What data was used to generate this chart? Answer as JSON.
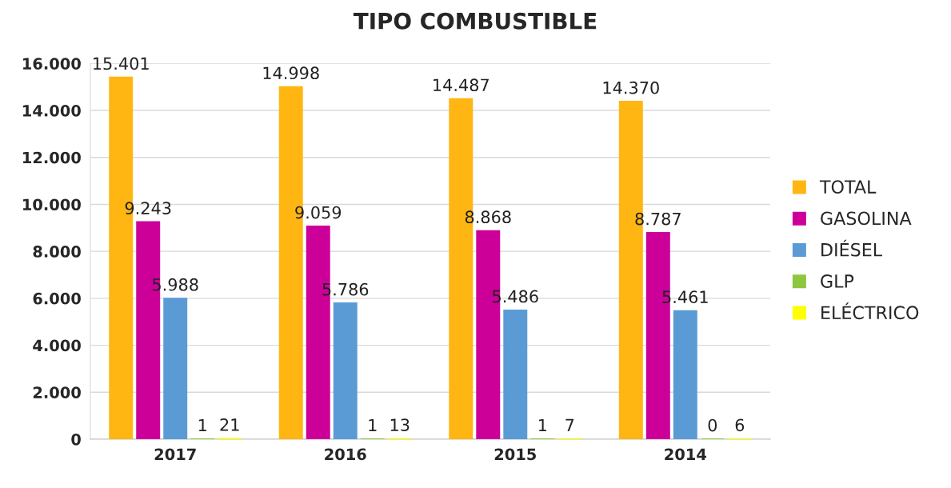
{
  "chart_data": {
    "type": "bar",
    "title": "TIPO COMBUSTIBLE",
    "categories": [
      "2017",
      "2016",
      "2015",
      "2014"
    ],
    "series": [
      {
        "name": "TOTAL",
        "color": "#ffb612",
        "values": [
          15401,
          14998,
          14487,
          14370
        ],
        "value_labels": [
          "15.401",
          "14.998",
          "14.487",
          "14.370"
        ]
      },
      {
        "name": "GASOLINA",
        "color": "#cc0099",
        "values": [
          9243,
          9059,
          8868,
          8787
        ],
        "value_labels": [
          "9.243",
          "9.059",
          "8.868",
          "8.787"
        ]
      },
      {
        "name": "DIÉSEL",
        "color": "#5b9bd5",
        "values": [
          5988,
          5786,
          5486,
          5461
        ],
        "value_labels": [
          "5.988",
          "5.786",
          "5.486",
          "5.461"
        ]
      },
      {
        "name": "GLP",
        "color": "#8dc63f",
        "values": [
          1,
          1,
          1,
          0
        ],
        "value_labels": [
          "1",
          "1",
          "1",
          "0"
        ]
      },
      {
        "name": "ELÉCTRICO",
        "color": "#ffff00",
        "values": [
          21,
          13,
          7,
          6
        ],
        "value_labels": [
          "21",
          "13",
          "7",
          "6"
        ]
      }
    ],
    "ylim": [
      0,
      16000
    ],
    "yticks": [
      {
        "value": 0,
        "label": "0"
      },
      {
        "value": 2000,
        "label": "2.000"
      },
      {
        "value": 4000,
        "label": "4.000"
      },
      {
        "value": 6000,
        "label": "6.000"
      },
      {
        "value": 8000,
        "label": "8.000"
      },
      {
        "value": 10000,
        "label": "10.000"
      },
      {
        "value": 12000,
        "label": "12.000"
      },
      {
        "value": 14000,
        "label": "14.000"
      },
      {
        "value": 16000,
        "label": "16.000"
      }
    ],
    "grid": "y",
    "legend": "right"
  }
}
